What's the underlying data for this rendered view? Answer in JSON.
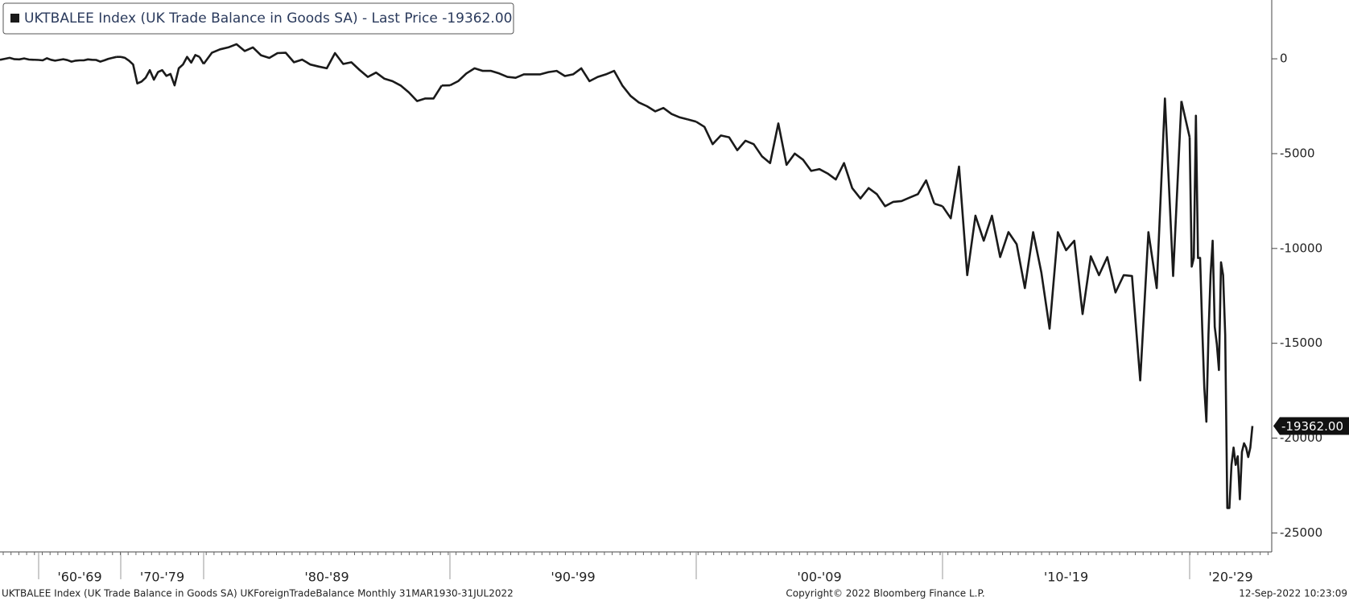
{
  "chart_data": {
    "type": "line",
    "color": "#1a1a1a",
    "legend": "UKTBALEE Index (UK Trade Balance in Goods SA) - Last Price -19362.00",
    "last_price": {
      "value": -19362,
      "label": "-19362.00"
    },
    "ylim": [
      -26000,
      3100
    ],
    "yticks": [
      0,
      -5000,
      -10000,
      -15000,
      -20000,
      -25000
    ],
    "groups": [
      {
        "label": null,
        "values": [
          -50,
          0,
          50,
          -20,
          -30,
          20,
          -40,
          -50
        ]
      },
      {
        "label": "'60-'69",
        "values": [
          -60,
          -80,
          30,
          -50,
          -100,
          -60,
          -20,
          -70,
          -150,
          -100,
          -80,
          -80,
          -30,
          -50,
          -60,
          -150,
          -80,
          0,
          50,
          100
        ]
      },
      {
        "label": "'70-'79",
        "values": [
          100,
          50,
          -100,
          -300,
          -1300,
          -1200,
          -1000,
          -600,
          -1100,
          -700,
          -600,
          -900,
          -800,
          -1400,
          -500,
          -300,
          100,
          -200,
          200,
          100
        ]
      },
      {
        "label": "'80-'89",
        "values": [
          -273,
          318,
          500,
          600,
          773,
          409,
          600,
          182,
          45,
          300,
          318,
          -182,
          -45,
          -300,
          -409,
          -500,
          300,
          -273,
          -182,
          -591,
          -955,
          -727,
          -1045,
          -1182,
          -1409,
          -1773,
          -2227,
          -2091,
          -2091,
          -1409
        ]
      },
      {
        "label": "'90-'99",
        "values": [
          -1400,
          -1182,
          -773,
          -500,
          -636,
          -636,
          -773,
          -955,
          -1000,
          -818,
          -818,
          -818,
          -700,
          -636,
          -909,
          -818,
          -500,
          -1182,
          -955,
          -818,
          -636,
          -1409,
          -1955,
          -2300,
          -2500,
          -2773,
          -2591,
          -2909,
          -3091,
          -3200
        ]
      },
      {
        "label": "'00-'09",
        "values": [
          -3318,
          -3591,
          -4500,
          -4045,
          -4136,
          -4818,
          -4318,
          -4500,
          -5136,
          -5500,
          -3409,
          -5591,
          -5000,
          -5318,
          -5909,
          -5818,
          -6045,
          -6364,
          -5500,
          -6818,
          -7364,
          -6818,
          -7136,
          -7773,
          -7545,
          -7500,
          -7318,
          -7136,
          -6409,
          -7636
        ]
      },
      {
        "label": "'10-'19",
        "values": [
          -7773,
          -8409,
          -5682,
          -11409,
          -8273,
          -9591,
          -8273,
          -10455,
          -9136,
          -9773,
          -12091,
          -9136,
          -11273,
          -14227,
          -9136,
          -10091,
          -9591,
          -13455,
          -10409,
          -11409,
          -10455,
          -12318,
          -11409,
          -11455,
          -16955,
          -9136,
          -12091,
          -2091,
          -11455,
          -2227
        ]
      },
      {
        "label": "'20-'29",
        "values": [
          -4136,
          -10955,
          -10500,
          -3000,
          -10500,
          -10500,
          -14136,
          -17318,
          -19136,
          -14545,
          -11409,
          -9591,
          -14136,
          -15045,
          -16409,
          -10727,
          -11409,
          -14545,
          -23682,
          -23682,
          -21409,
          -20500,
          -21409,
          -20955,
          -23227,
          -20727,
          -20273,
          -20500,
          -21000,
          -20500,
          -19362
        ]
      }
    ],
    "footer_left": "UKTBALEE Index (UK Trade Balance in Goods SA) UKForeignTradeBalance  Monthly 31MAR1930-31JUL2022",
    "footer_center": "Copyright© 2022 Bloomberg Finance L.P.",
    "footer_right": "12-Sep-2022 10:23:09"
  }
}
